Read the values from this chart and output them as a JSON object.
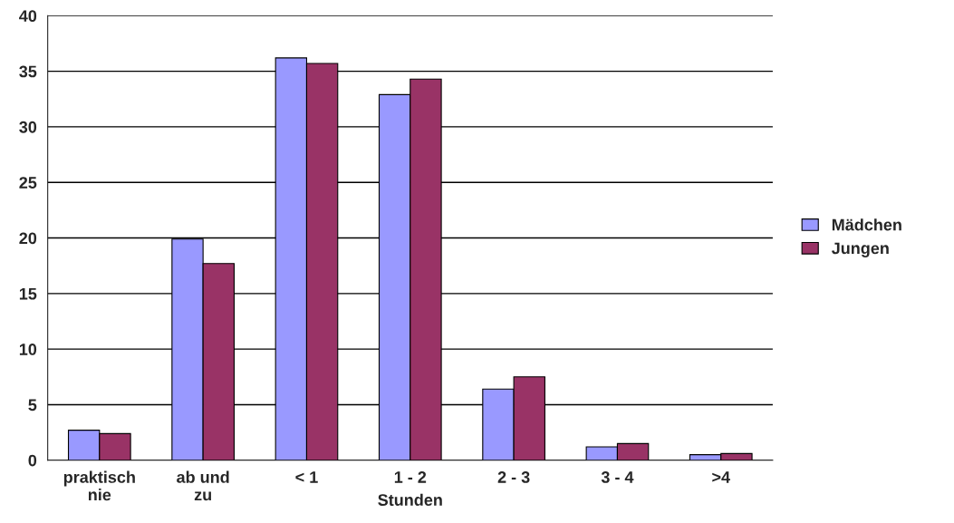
{
  "chart_data": {
    "type": "bar",
    "xlabel": "Stunden",
    "categories": [
      "praktisch\nnie",
      "ab und\nzu",
      "< 1",
      "1 - 2",
      "2 - 3",
      "3 - 4",
      ">4"
    ],
    "series": [
      {
        "name": "Mädchen",
        "color": "#9999ff",
        "values": [
          2.7,
          19.9,
          36.2,
          32.9,
          6.4,
          1.2,
          0.5
        ]
      },
      {
        "name": "Jungen",
        "color": "#993366",
        "values": [
          2.4,
          17.7,
          35.7,
          34.3,
          7.5,
          1.5,
          0.6
        ]
      }
    ],
    "ylim": [
      0,
      40
    ],
    "yticks": [
      0,
      5,
      10,
      15,
      20,
      25,
      30,
      35,
      40
    ],
    "grid": "y",
    "legend": "right"
  }
}
